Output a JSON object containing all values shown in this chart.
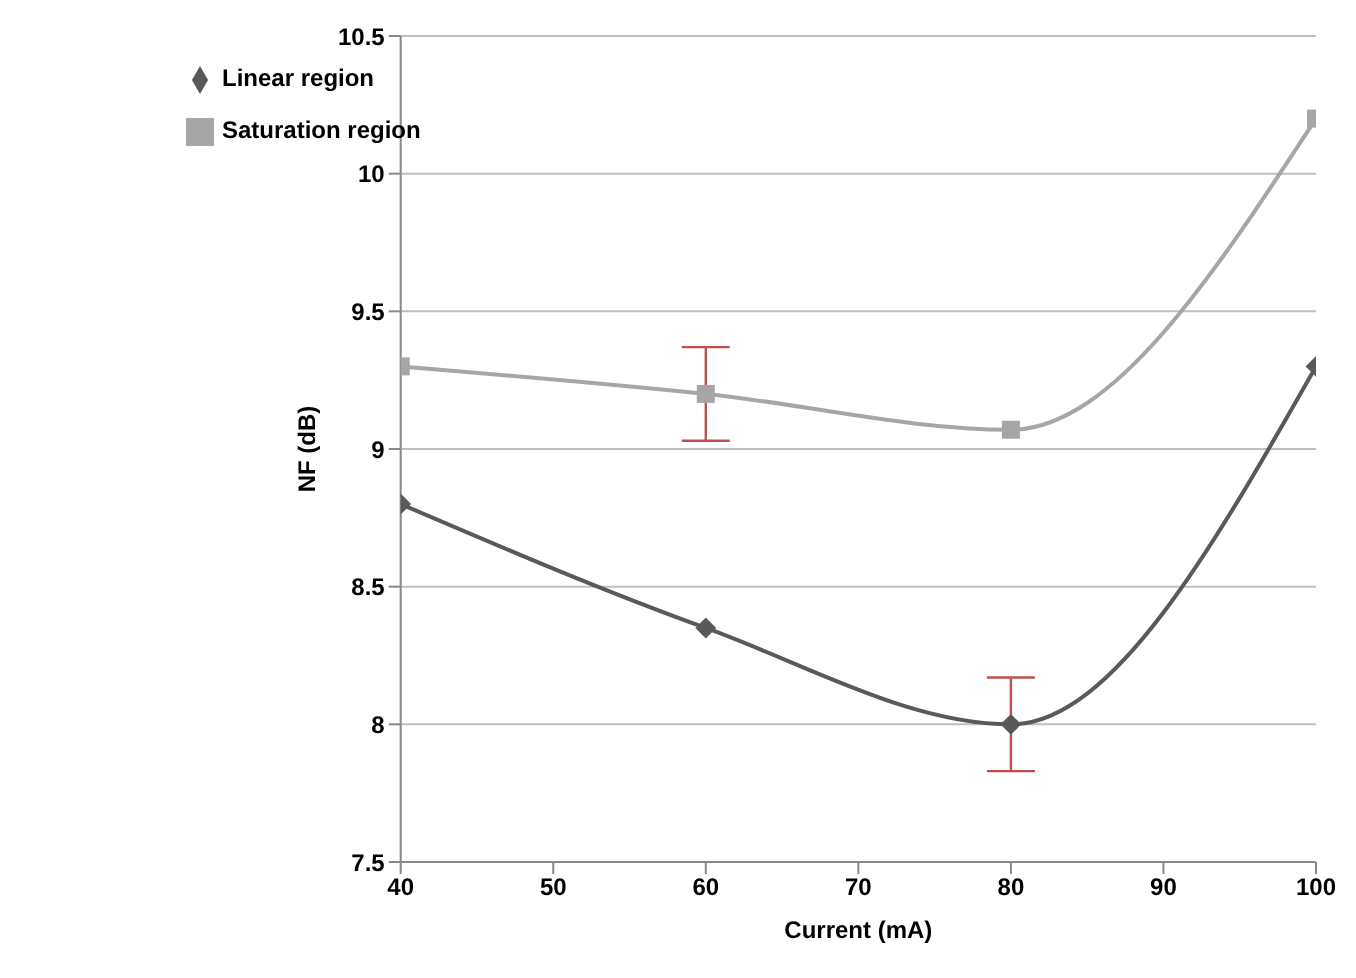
{
  "chart_data": {
    "type": "line",
    "xlabel": "Current (mA)",
    "ylabel": "NF (dB)",
    "x": [
      40,
      60,
      80,
      100
    ],
    "series": [
      {
        "name": "Linear region",
        "color": "#595959",
        "marker": "diamond",
        "values": [
          8.8,
          8.35,
          8.0,
          9.3
        ],
        "errors": [
          null,
          null,
          0.17,
          null
        ]
      },
      {
        "name": "Saturation region",
        "color": "#a6a6a6",
        "marker": "square",
        "values": [
          9.3,
          9.2,
          9.07,
          10.2
        ],
        "errors": [
          null,
          0.17,
          null,
          null
        ]
      }
    ],
    "xlim": [
      40,
      100
    ],
    "xticks": [
      40,
      50,
      60,
      70,
      80,
      90,
      100
    ],
    "ylim": [
      7.5,
      10.5
    ],
    "yticks": [
      7.5,
      8,
      8.5,
      9,
      9.5,
      10,
      10.5
    ],
    "grid": "y",
    "legend": "top left"
  }
}
